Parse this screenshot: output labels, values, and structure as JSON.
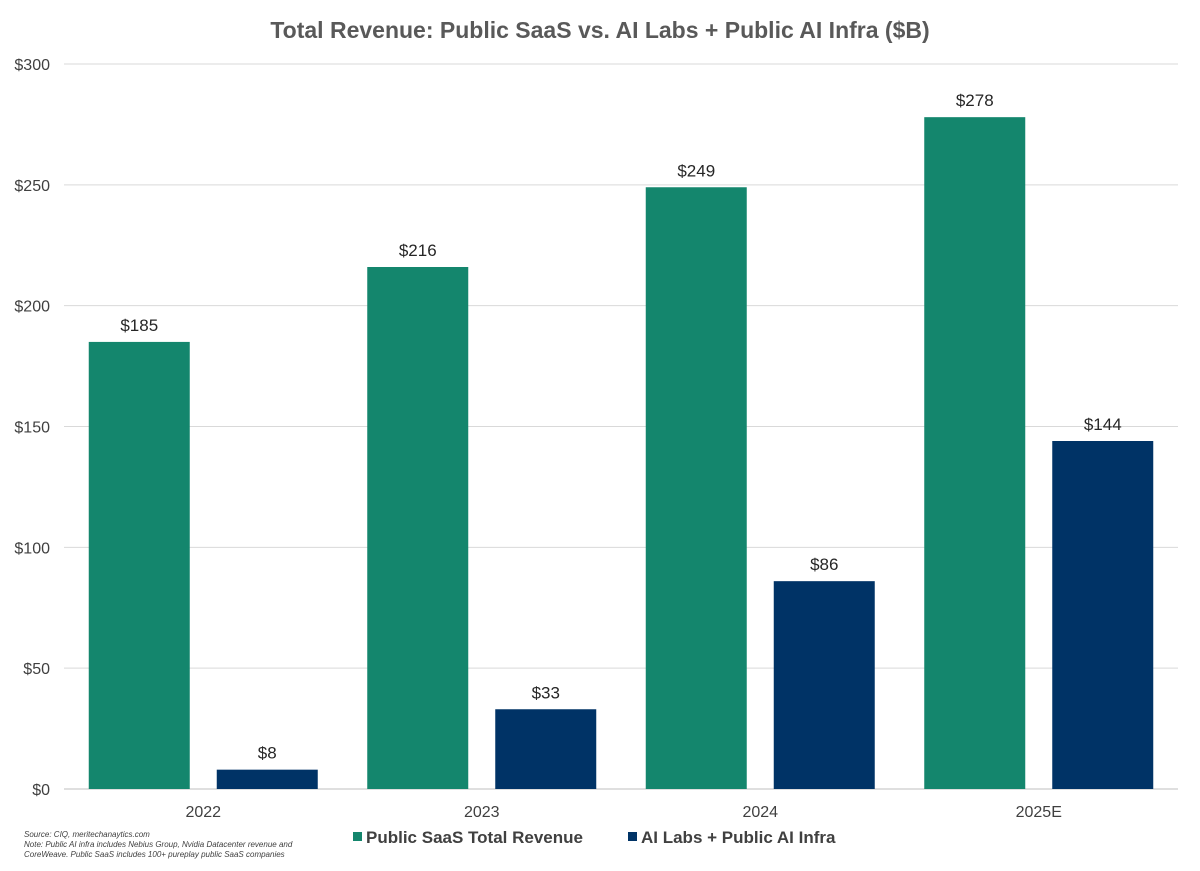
{
  "chart_data": {
    "type": "bar",
    "title": "Total Revenue: Public SaaS vs. AI Labs + Public AI Infra ($B)",
    "categories": [
      "2022",
      "2023",
      "2024",
      "2025E"
    ],
    "series": [
      {
        "name": "Public SaaS Total Revenue",
        "color": "#14866d",
        "values": [
          185,
          216,
          249,
          278
        ],
        "labels": [
          "$185",
          "$216",
          "$249",
          "$278"
        ]
      },
      {
        "name": "AI Labs + Public AI Infra",
        "color": "#003366",
        "values": [
          8,
          33,
          86,
          144
        ],
        "labels": [
          "$8",
          "$33",
          "$86",
          "$144"
        ]
      }
    ],
    "ylim": [
      0,
      300
    ],
    "yticks": [
      0,
      50,
      100,
      150,
      200,
      250,
      300
    ],
    "ytick_labels": [
      "$0",
      "$50",
      "$100",
      "$150",
      "$200",
      "$250",
      "$300"
    ],
    "xlabel": "",
    "ylabel": "",
    "grid": true,
    "legend": "bottom"
  },
  "footnote": {
    "source": "Source: CIQ, meritechanaytics.com",
    "note_line1": "Note: Public AI infra includes Nebius Group, Nvidia Datacenter revenue and",
    "note_line2": "CoreWeave. Public SaaS includes 100+ pureplay public SaaS companies"
  }
}
